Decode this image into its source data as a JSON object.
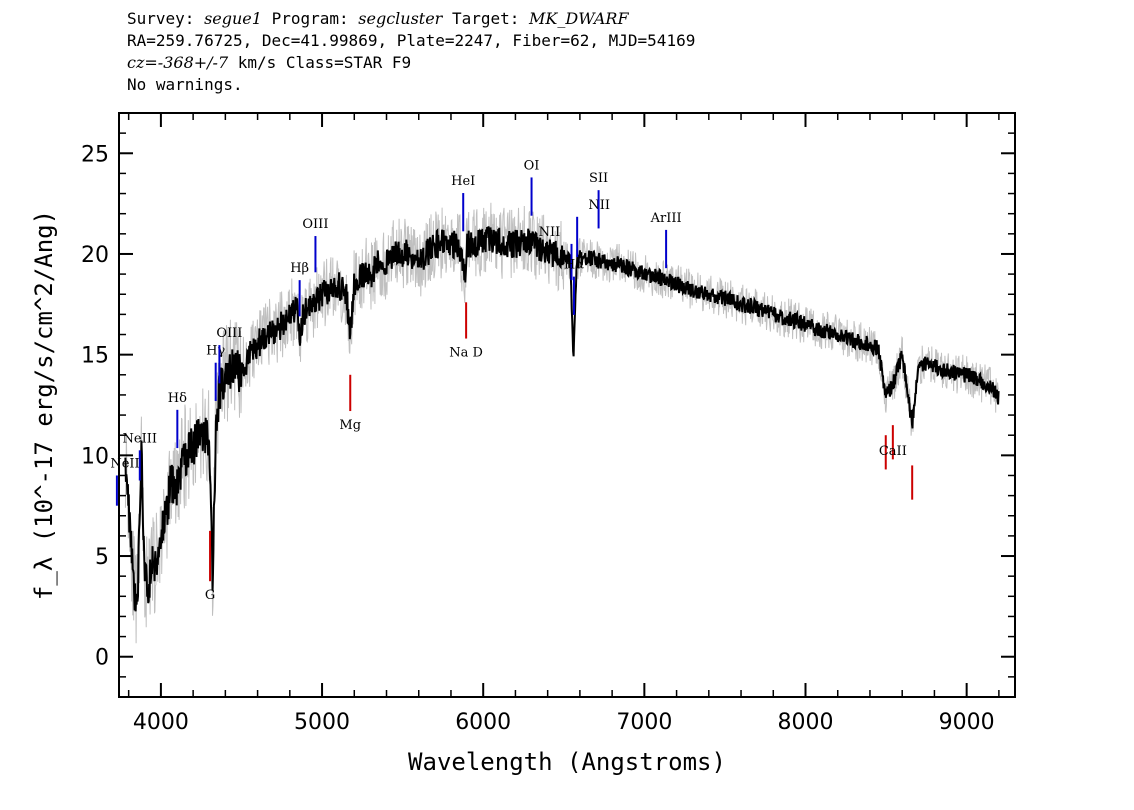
{
  "header": {
    "survey_prefix": "Survey: ",
    "survey": "segue1",
    "program_prefix": " Program: ",
    "program": "segcluster",
    "target_prefix": " Target: ",
    "target": "MK_DWARF",
    "line2": "RA=259.76725, Dec=41.99869, Plate=2247, Fiber=62, MJD=54169",
    "cz_prefix": "cz=",
    "cz": "-368+/-7",
    "cz_suffix": " km/s Class=STAR F9",
    "line4": "No warnings."
  },
  "colors": {
    "flux": "#000000",
    "noise": "#c0c0c0",
    "emission": "#0000cc",
    "absorption": "#cc0000",
    "axes": "#000000"
  },
  "chart_data": {
    "type": "line",
    "xlabel": "Wavelength (Angstroms)",
    "ylabel": "f_λ (10^-17 erg/s/cm^2/Ang)",
    "xlim": [
      3740,
      9300
    ],
    "ylim": [
      -2,
      27
    ],
    "xticks": [
      4000,
      5000,
      6000,
      7000,
      8000,
      9000
    ],
    "yticks": [
      0,
      5,
      10,
      15,
      20,
      25
    ],
    "series": [
      {
        "style": "line",
        "x": [
          3780,
          3800,
          3830,
          3850,
          3870,
          3880,
          3900,
          3920,
          3950,
          3970,
          4000,
          4030,
          4060,
          4100,
          4150,
          4200,
          4250,
          4300,
          4320,
          4340,
          4360,
          4400,
          4450,
          4500,
          4550,
          4600,
          4650,
          4700,
          4750,
          4800,
          4850,
          4861,
          4880,
          4920,
          4950,
          5000,
          5050,
          5100,
          5150,
          5175,
          5200,
          5250,
          5300,
          5350,
          5400,
          5450,
          5500,
          5550,
          5600,
          5650,
          5700,
          5750,
          5800,
          5850,
          5890,
          5900,
          5950,
          6000,
          6050,
          6100,
          6150,
          6200,
          6250,
          6300,
          6350,
          6400,
          6450,
          6500,
          6540,
          6560,
          6580,
          6600,
          6650,
          6700,
          6750,
          6800,
          6850,
          6900,
          6950,
          7000,
          7100,
          7200,
          7300,
          7400,
          7500,
          7600,
          7700,
          7800,
          7900,
          8000,
          8100,
          8200,
          8300,
          8400,
          8450,
          8498,
          8542,
          8600,
          8662,
          8700,
          8750,
          8800,
          8850,
          8900,
          8950,
          9000,
          9050,
          9100,
          9150,
          9200
        ],
        "y": [
          10.0,
          7.5,
          4.0,
          2.0,
          7.0,
          10.0,
          4.0,
          3.0,
          5.0,
          4.5,
          6.0,
          7.0,
          8.5,
          8.5,
          10.0,
          10.5,
          11.0,
          11.0,
          4.0,
          11.0,
          13.0,
          14.0,
          14.5,
          14.0,
          15.0,
          15.5,
          16.0,
          16.0,
          16.5,
          17.0,
          17.5,
          15.5,
          17.0,
          17.5,
          17.5,
          18.0,
          18.0,
          18.5,
          18.0,
          16.0,
          18.5,
          19.0,
          19.0,
          19.5,
          19.5,
          20.0,
          20.0,
          20.0,
          19.5,
          20.0,
          20.5,
          20.5,
          20.5,
          20.5,
          19.0,
          20.5,
          20.5,
          20.8,
          20.8,
          20.6,
          20.5,
          20.5,
          20.6,
          20.6,
          20.3,
          20.0,
          20.0,
          20.0,
          19.5,
          15.0,
          19.5,
          19.8,
          19.8,
          19.7,
          19.6,
          19.5,
          19.5,
          19.3,
          19.2,
          19.0,
          18.8,
          18.5,
          18.2,
          18.0,
          17.8,
          17.5,
          17.3,
          17.0,
          16.8,
          16.5,
          16.2,
          16.0,
          15.7,
          15.5,
          15.3,
          13.0,
          13.5,
          15.0,
          11.5,
          14.5,
          14.5,
          14.4,
          14.3,
          14.2,
          14.0,
          14.0,
          13.8,
          13.6,
          13.5,
          12.8
        ]
      }
    ],
    "lines": [
      {
        "label": "NeII",
        "wave": 3727,
        "kind": "emission"
      },
      {
        "label": "NeIII",
        "wave": 3869,
        "kind": "emission"
      },
      {
        "label": "Hδ",
        "wave": 4102,
        "kind": "emission"
      },
      {
        "label": "Hγ",
        "wave": 4340,
        "kind": "emission"
      },
      {
        "label": "OIII",
        "wave": 4363,
        "kind": "emission"
      },
      {
        "label": "Hβ",
        "wave": 4861,
        "kind": "emission"
      },
      {
        "label": "OIII",
        "wave": 4959,
        "kind": "emission"
      },
      {
        "label": "HeI",
        "wave": 5876,
        "kind": "emission"
      },
      {
        "label": "OI",
        "wave": 6300,
        "kind": "emission"
      },
      {
        "label": "NII",
        "wave": 6548,
        "kind": "emission"
      },
      {
        "label": "Hα",
        "wave": 6563,
        "kind": "emission"
      },
      {
        "label": "NII",
        "wave": 6583,
        "kind": "emission"
      },
      {
        "label": "SII",
        "wave": 6716,
        "kind": "emission"
      },
      {
        "label": "ArIII",
        "wave": 7135,
        "kind": "emission"
      },
      {
        "label": "G",
        "wave": 4305,
        "kind": "absorption"
      },
      {
        "label": "Mg",
        "wave": 5175,
        "kind": "absorption"
      },
      {
        "label": "Na D",
        "wave": 5894,
        "kind": "absorption"
      },
      {
        "label": "CaII",
        "wave": 8542,
        "kind": "absorption"
      }
    ]
  }
}
